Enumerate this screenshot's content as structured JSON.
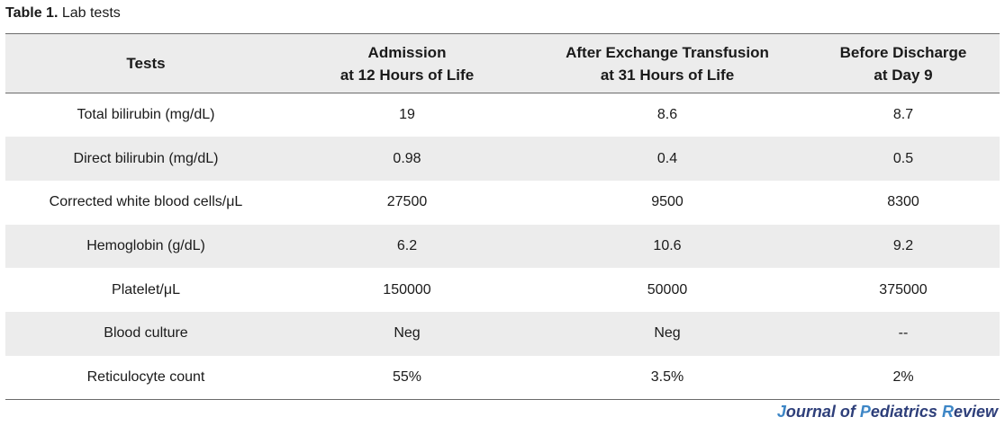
{
  "caption": {
    "label": "Table 1.",
    "title": "Lab tests"
  },
  "table": {
    "headers": [
      {
        "lines": [
          "Tests"
        ]
      },
      {
        "lines": [
          "Admission",
          "at 12 Hours of Life"
        ]
      },
      {
        "lines": [
          "After Exchange Transfusion",
          "at 31 Hours of Life"
        ]
      },
      {
        "lines": [
          "Before Discharge",
          "at Day 9"
        ]
      }
    ],
    "rows": [
      [
        "Total bilirubin (mg/dL)",
        "19",
        "8.6",
        "8.7"
      ],
      [
        "Direct bilirubin (mg/dL)",
        "0.98",
        "0.4",
        "0.5"
      ],
      [
        "Corrected white blood cells/μL",
        "27500",
        "9500",
        "8300"
      ],
      [
        "Hemoglobin (g/dL)",
        "6.2",
        "10.6",
        "9.2"
      ],
      [
        "Platelet/μL",
        "150000",
        "50000",
        "375000"
      ],
      [
        "Blood culture",
        "Neg",
        "Neg",
        "--"
      ],
      [
        "Reticulocyte count",
        "55%",
        "3.5%",
        "2%"
      ]
    ],
    "stripe_color": "#ececec",
    "rule_color": "#6b6b6b"
  },
  "journal": {
    "parts": [
      {
        "text": "J",
        "initial": true
      },
      {
        "text": "ournal of ",
        "initial": false
      },
      {
        "text": "P",
        "initial": true
      },
      {
        "text": "ediatrics ",
        "initial": false
      },
      {
        "text": "R",
        "initial": true
      },
      {
        "text": "eview",
        "initial": false
      }
    ],
    "name_color": "#2e3f7a",
    "initial_color": "#3d86c6"
  }
}
